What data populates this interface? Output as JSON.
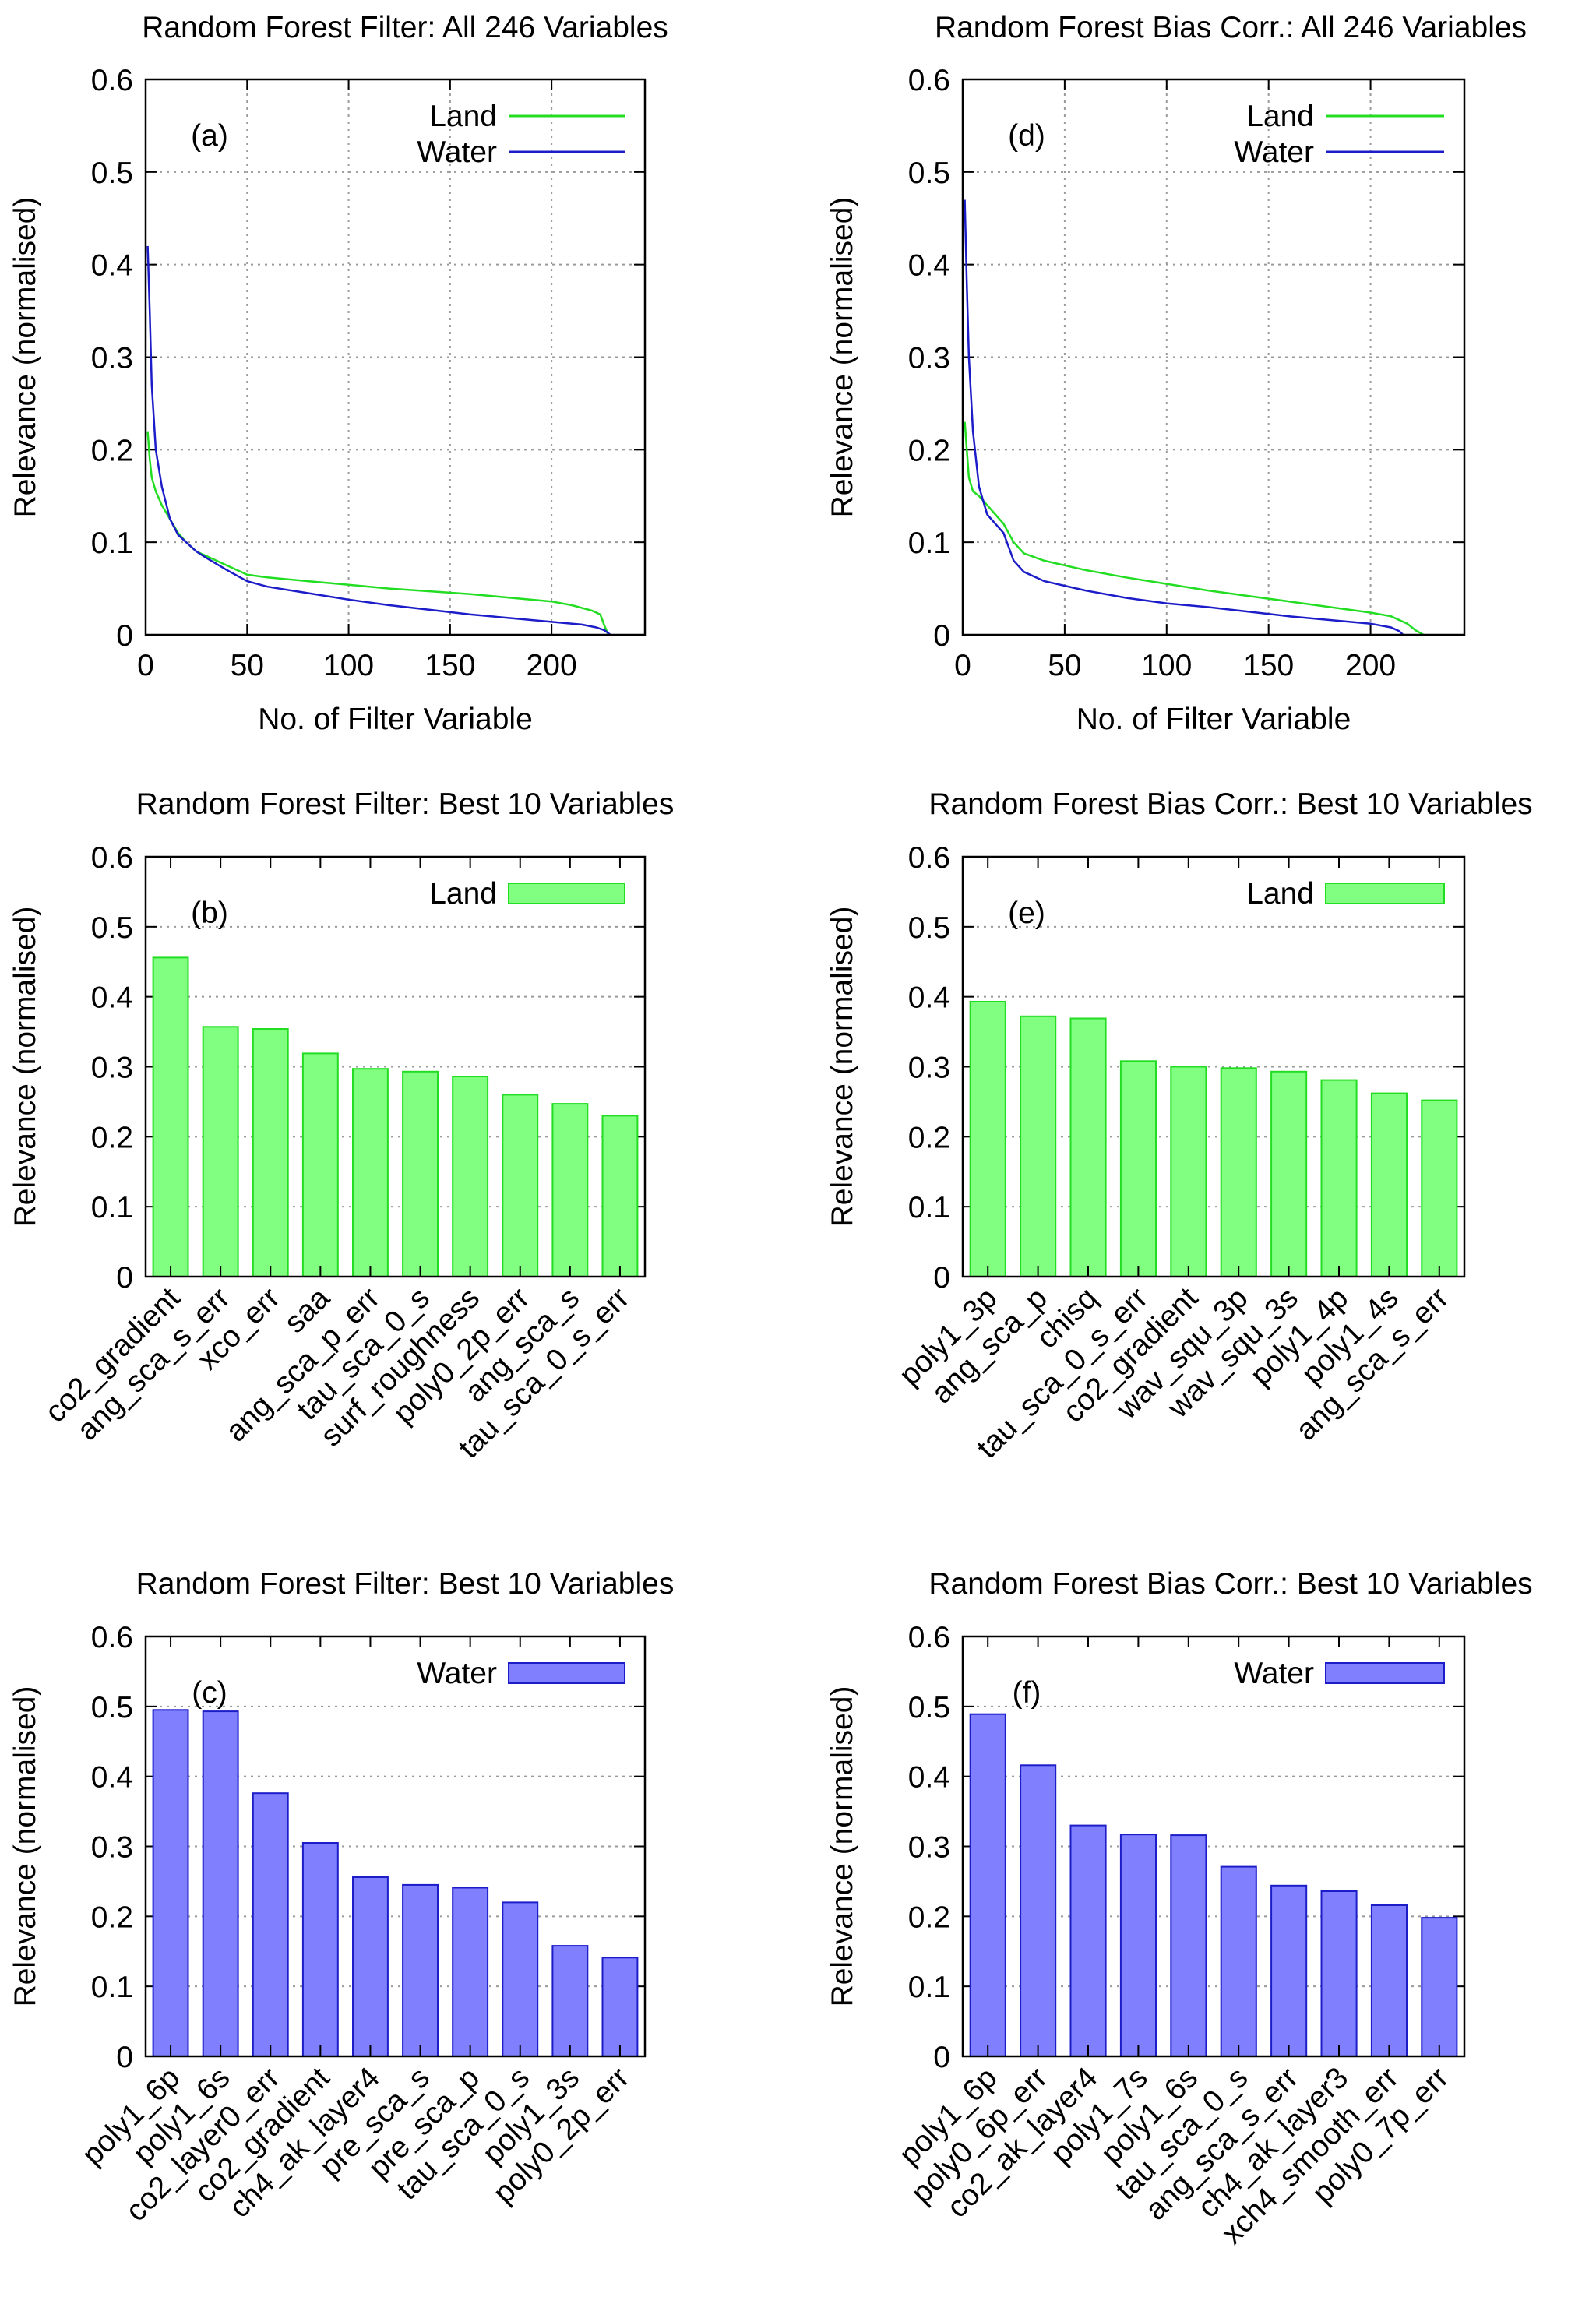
{
  "figure": {
    "colors": {
      "land": "#22dd22",
      "water": "#1c1cc8",
      "land_fill": "#80ff80",
      "water_fill": "#8080ff"
    }
  },
  "chart_data": [
    {
      "id": "a",
      "type": "line",
      "title": "Random Forest Filter: All 246 Variables",
      "panel_label": "(a)",
      "xlabel": "No. of Filter Variable",
      "ylabel": "Relevance (normalised)",
      "xlim": [
        0,
        246
      ],
      "ylim": [
        0,
        0.6
      ],
      "xticks": [
        0,
        50,
        100,
        150,
        200
      ],
      "yticks": [
        0,
        0.1,
        0.2,
        0.3,
        0.4,
        0.5,
        0.6
      ],
      "ytick_labels": [
        "0",
        "0.1",
        "0.2",
        "0.3",
        "0.4",
        "0.5",
        "0.6"
      ],
      "grid": true,
      "legend": "top-right",
      "series": [
        {
          "name": "Land",
          "color": "#22dd22",
          "x": [
            1,
            2,
            3,
            5,
            8,
            12,
            16,
            20,
            25,
            30,
            40,
            50,
            60,
            80,
            100,
            120,
            140,
            160,
            180,
            200,
            210,
            220,
            224,
            226,
            228
          ],
          "y": [
            0.22,
            0.19,
            0.17,
            0.155,
            0.14,
            0.125,
            0.11,
            0.1,
            0.09,
            0.085,
            0.075,
            0.065,
            0.062,
            0.058,
            0.054,
            0.05,
            0.047,
            0.044,
            0.04,
            0.036,
            0.032,
            0.026,
            0.022,
            0.01,
            0.0
          ]
        },
        {
          "name": "Water",
          "color": "#1c1cc8",
          "x": [
            1,
            2,
            3,
            5,
            8,
            12,
            16,
            20,
            25,
            30,
            40,
            50,
            60,
            80,
            100,
            120,
            140,
            160,
            180,
            200,
            215,
            222,
            226,
            229
          ],
          "y": [
            0.42,
            0.35,
            0.27,
            0.2,
            0.16,
            0.125,
            0.108,
            0.1,
            0.09,
            0.083,
            0.07,
            0.058,
            0.052,
            0.045,
            0.038,
            0.032,
            0.027,
            0.022,
            0.018,
            0.014,
            0.011,
            0.008,
            0.005,
            0.0
          ]
        }
      ]
    },
    {
      "id": "d",
      "type": "line",
      "title": "Random Forest Bias Corr.: All 246 Variables",
      "panel_label": "(d)",
      "xlabel": "No. of Filter Variable",
      "ylabel": "Relevance (normalised)",
      "xlim": [
        0,
        246
      ],
      "ylim": [
        0,
        0.6
      ],
      "xticks": [
        0,
        50,
        100,
        150,
        200
      ],
      "yticks": [
        0,
        0.1,
        0.2,
        0.3,
        0.4,
        0.5,
        0.6
      ],
      "ytick_labels": [
        "0",
        "0.1",
        "0.2",
        "0.3",
        "0.4",
        "0.5",
        "0.6"
      ],
      "grid": true,
      "legend": "top-right",
      "series": [
        {
          "name": "Land",
          "color": "#22dd22",
          "x": [
            1,
            2,
            3,
            5,
            8,
            12,
            16,
            20,
            25,
            30,
            40,
            60,
            80,
            100,
            120,
            140,
            160,
            180,
            200,
            210,
            218,
            222,
            226
          ],
          "y": [
            0.23,
            0.2,
            0.17,
            0.155,
            0.15,
            0.14,
            0.13,
            0.12,
            0.1,
            0.088,
            0.08,
            0.07,
            0.062,
            0.055,
            0.048,
            0.042,
            0.036,
            0.03,
            0.024,
            0.02,
            0.012,
            0.005,
            0.0
          ]
        },
        {
          "name": "Water",
          "color": "#1c1cc8",
          "x": [
            1,
            2,
            3,
            5,
            8,
            12,
            16,
            20,
            25,
            30,
            40,
            60,
            80,
            100,
            120,
            140,
            160,
            180,
            200,
            210,
            214,
            216
          ],
          "y": [
            0.47,
            0.38,
            0.3,
            0.22,
            0.16,
            0.13,
            0.12,
            0.11,
            0.08,
            0.068,
            0.058,
            0.048,
            0.04,
            0.034,
            0.03,
            0.025,
            0.02,
            0.016,
            0.012,
            0.008,
            0.004,
            0.0
          ]
        }
      ]
    },
    {
      "id": "b",
      "type": "bar",
      "title": "Random Forest Filter: Best 10 Variables",
      "panel_label": "(b)",
      "xlabel": "",
      "ylabel": "Relevance (normalised)",
      "ylim": [
        0,
        0.6
      ],
      "yticks": [
        0,
        0.1,
        0.2,
        0.3,
        0.4,
        0.5,
        0.6
      ],
      "ytick_labels": [
        "0",
        "0.1",
        "0.2",
        "0.3",
        "0.4",
        "0.5",
        "0.6"
      ],
      "grid": true,
      "legend": "top-right",
      "series": [
        {
          "name": "Land",
          "fill": "#80ff80",
          "stroke": "#22dd22",
          "values": [
            0.456,
            0.357,
            0.354,
            0.319,
            0.297,
            0.293,
            0.286,
            0.26,
            0.247,
            0.23
          ]
        }
      ],
      "categories": [
        "co2_gradient",
        "ang_sca_s_err",
        "xco_err",
        "saa",
        "ang_sca_p_err",
        "tau_sca_0_s",
        "surf_roughness",
        "poly0_2p_err",
        "ang_sca_s",
        "tau_sca_0_s_err"
      ]
    },
    {
      "id": "e",
      "type": "bar",
      "title": "Random Forest Bias Corr.: Best 10 Variables",
      "panel_label": "(e)",
      "xlabel": "",
      "ylabel": "Relevance (normalised)",
      "ylim": [
        0,
        0.6
      ],
      "yticks": [
        0,
        0.1,
        0.2,
        0.3,
        0.4,
        0.5,
        0.6
      ],
      "ytick_labels": [
        "0",
        "0.1",
        "0.2",
        "0.3",
        "0.4",
        "0.5",
        "0.6"
      ],
      "grid": true,
      "legend": "top-right",
      "series": [
        {
          "name": "Land",
          "fill": "#80ff80",
          "stroke": "#22dd22",
          "values": [
            0.393,
            0.372,
            0.369,
            0.308,
            0.3,
            0.298,
            0.293,
            0.281,
            0.262,
            0.252
          ]
        }
      ],
      "categories": [
        "poly1_3p",
        "ang_sca_p",
        "chisq",
        "tau_sca_0_s_err",
        "co2_gradient",
        "wav_squ_3p",
        "wav_squ_3s",
        "poly1_4p",
        "poly1_4s",
        "ang_sca_s_err"
      ]
    },
    {
      "id": "c",
      "type": "bar",
      "title": "Random Forest Filter: Best 10 Variables",
      "panel_label": "(c)",
      "xlabel": "",
      "ylabel": "Relevance (normalised)",
      "ylim": [
        0,
        0.6
      ],
      "yticks": [
        0,
        0.1,
        0.2,
        0.3,
        0.4,
        0.5,
        0.6
      ],
      "ytick_labels": [
        "0",
        "0.1",
        "0.2",
        "0.3",
        "0.4",
        "0.5",
        "0.6"
      ],
      "grid": true,
      "legend": "top-right",
      "series": [
        {
          "name": "Water",
          "fill": "#8080ff",
          "stroke": "#1c1cc8",
          "values": [
            0.495,
            0.493,
            0.376,
            0.305,
            0.256,
            0.245,
            0.241,
            0.22,
            0.158,
            0.141
          ]
        }
      ],
      "categories": [
        "poly1_6p",
        "poly1_6s",
        "co2_layer0_err",
        "co2_gradient",
        "ch4_ak_layer4",
        "pre_sca_s",
        "pre_sca_p",
        "tau_sca_0_s",
        "poly1_3s",
        "poly0_2p_err"
      ]
    },
    {
      "id": "f",
      "type": "bar",
      "title": "Random Forest Bias Corr.: Best 10 Variables",
      "panel_label": "(f)",
      "xlabel": "",
      "ylabel": "Relevance (normalised)",
      "ylim": [
        0,
        0.6
      ],
      "yticks": [
        0,
        0.1,
        0.2,
        0.3,
        0.4,
        0.5,
        0.6
      ],
      "ytick_labels": [
        "0",
        "0.1",
        "0.2",
        "0.3",
        "0.4",
        "0.5",
        "0.6"
      ],
      "grid": true,
      "legend": "top-right",
      "series": [
        {
          "name": "Water",
          "fill": "#8080ff",
          "stroke": "#1c1cc8",
          "values": [
            0.489,
            0.416,
            0.33,
            0.317,
            0.316,
            0.271,
            0.244,
            0.236,
            0.216,
            0.198
          ]
        }
      ],
      "categories": [
        "poly1_6p",
        "poly0_6p_err",
        "co2_ak_layer4",
        "poly1_7s",
        "poly1_6s",
        "tau_sca_0_s",
        "ang_sca_s_err",
        "ch4_ak_layer3",
        "xch4_smooth_err",
        "poly0_7p_err"
      ]
    }
  ]
}
